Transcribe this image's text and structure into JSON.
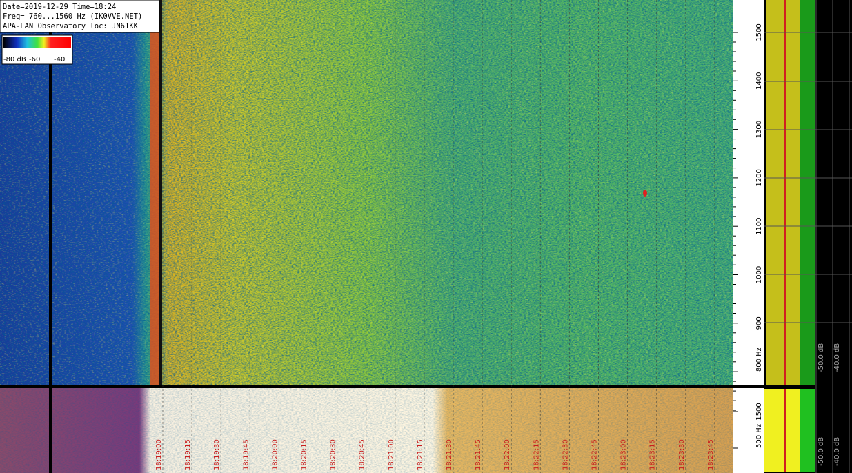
{
  "header": {
    "lines": [
      "Date=2019-12-29 Time=18:24",
      "Freq= 760...1560 Hz (IK0VVE.NET)",
      "APA-LAN Observatory loc: JN61KK"
    ]
  },
  "color_bar": {
    "labels": [
      "-80 dB",
      "-60",
      "-40"
    ]
  },
  "frequency_axis": {
    "labels": [
      "1500",
      "1400",
      "1300",
      "1200",
      "1100",
      "1000",
      "900",
      "800 Hz"
    ]
  },
  "lower_frequency_axis": {
    "labels": [
      "1500",
      "500 Hz"
    ]
  },
  "spectrum_scale": {
    "labels": [
      "-50.0 dB",
      "-40.0 dB"
    ]
  },
  "lower_spectrum_scale": {
    "labels": [
      "-50.0 dB",
      "-40.0 dB"
    ]
  },
  "time_axis": {
    "labels": [
      "18:19:00",
      "18:19:15",
      "18:19:30",
      "18:19:45",
      "18:20:00",
      "18:20:15",
      "18:20:30",
      "18:20:45",
      "18:21:00",
      "18:21:15",
      "18:21:30",
      "18:21:45",
      "18:22:00",
      "18:22:15",
      "18:22:30",
      "18:22:45",
      "18:23:00",
      "18:23:15",
      "18:23:30",
      "18:23:45"
    ]
  }
}
